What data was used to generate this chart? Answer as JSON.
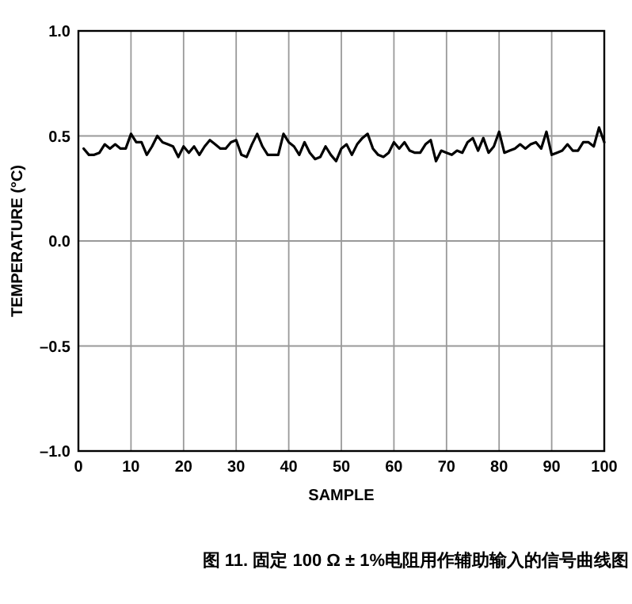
{
  "chart_data": {
    "type": "line",
    "xlabel": "SAMPLE",
    "ylabel": "TEMPERATURE (°C)",
    "annotations": [
      "图 11. 固定 100 Ω ± 1%电阻用作辅助输入的信号曲线图"
    ],
    "xlim": [
      0,
      100
    ],
    "ylim": [
      -1.0,
      1.0
    ],
    "xticks": [
      0,
      10,
      20,
      30,
      40,
      50,
      60,
      70,
      80,
      90,
      100
    ],
    "yticks": [
      {
        "value": -1.0,
        "label": "–1.0"
      },
      {
        "value": -0.5,
        "label": "–0.5"
      },
      {
        "value": 0.0,
        "label": "0.0"
      },
      {
        "value": 0.5,
        "label": "0.5"
      },
      {
        "value": 1.0,
        "label": "1.0"
      }
    ],
    "grid": true,
    "x": [
      1,
      2,
      3,
      4,
      5,
      6,
      7,
      8,
      9,
      10,
      11,
      12,
      13,
      14,
      15,
      16,
      17,
      18,
      19,
      20,
      21,
      22,
      23,
      24,
      25,
      26,
      27,
      28,
      29,
      30,
      31,
      32,
      33,
      34,
      35,
      36,
      37,
      38,
      39,
      40,
      41,
      42,
      43,
      44,
      45,
      46,
      47,
      48,
      49,
      50,
      51,
      52,
      53,
      54,
      55,
      56,
      57,
      58,
      59,
      60,
      61,
      62,
      63,
      64,
      65,
      66,
      67,
      68,
      69,
      70,
      71,
      72,
      73,
      74,
      75,
      76,
      77,
      78,
      79,
      80,
      81,
      82,
      83,
      84,
      85,
      86,
      87,
      88,
      89,
      90,
      91,
      92,
      93,
      94,
      95,
      96,
      97,
      98,
      99,
      100
    ],
    "series": [
      {
        "color": "#000000",
        "values": [
          0.44,
          0.41,
          0.41,
          0.42,
          0.46,
          0.44,
          0.46,
          0.44,
          0.44,
          0.51,
          0.47,
          0.47,
          0.41,
          0.45,
          0.5,
          0.47,
          0.46,
          0.45,
          0.4,
          0.45,
          0.42,
          0.45,
          0.41,
          0.45,
          0.48,
          0.46,
          0.44,
          0.44,
          0.47,
          0.48,
          0.41,
          0.4,
          0.46,
          0.51,
          0.45,
          0.41,
          0.41,
          0.41,
          0.51,
          0.47,
          0.45,
          0.41,
          0.47,
          0.42,
          0.39,
          0.4,
          0.45,
          0.41,
          0.38,
          0.44,
          0.46,
          0.41,
          0.46,
          0.49,
          0.51,
          0.44,
          0.41,
          0.4,
          0.42,
          0.47,
          0.44,
          0.47,
          0.43,
          0.42,
          0.42,
          0.46,
          0.48,
          0.38,
          0.43,
          0.42,
          0.41,
          0.43,
          0.42,
          0.47,
          0.49,
          0.43,
          0.49,
          0.42,
          0.45,
          0.52,
          0.42,
          0.43,
          0.44,
          0.46,
          0.44,
          0.46,
          0.47,
          0.44,
          0.52,
          0.41,
          0.42,
          0.43,
          0.46,
          0.43,
          0.43,
          0.47,
          0.47,
          0.45,
          0.54,
          0.47
        ]
      }
    ]
  }
}
